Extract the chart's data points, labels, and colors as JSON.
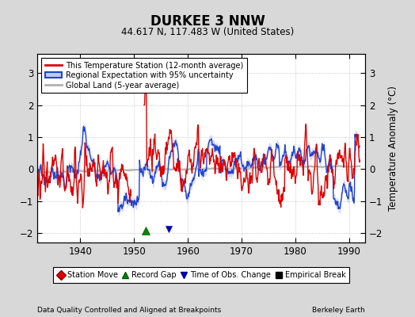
{
  "title": "DURKEE 3 NNW",
  "subtitle": "44.617 N, 117.483 W (United States)",
  "xlabel_left": "Data Quality Controlled and Aligned at Breakpoints",
  "xlabel_right": "Berkeley Earth",
  "ylabel": "Temperature Anomaly (°C)",
  "xlim": [
    1932,
    1993
  ],
  "ylim": [
    -2.3,
    3.6
  ],
  "yticks": [
    -2,
    -1,
    0,
    1,
    2,
    3
  ],
  "xticks": [
    1940,
    1950,
    1960,
    1970,
    1980,
    1990
  ],
  "background_color": "#d8d8d8",
  "plot_bg_color": "#ffffff",
  "station_line_color": "#dd0000",
  "regional_line_color": "#2244cc",
  "regional_fill_color": "#c0c8f0",
  "global_line_color": "#b0b0b0",
  "record_gap_x": 1952.2,
  "record_gap_y": -1.92,
  "time_obs_change_x": 1956.5,
  "legend_loc": "upper left"
}
